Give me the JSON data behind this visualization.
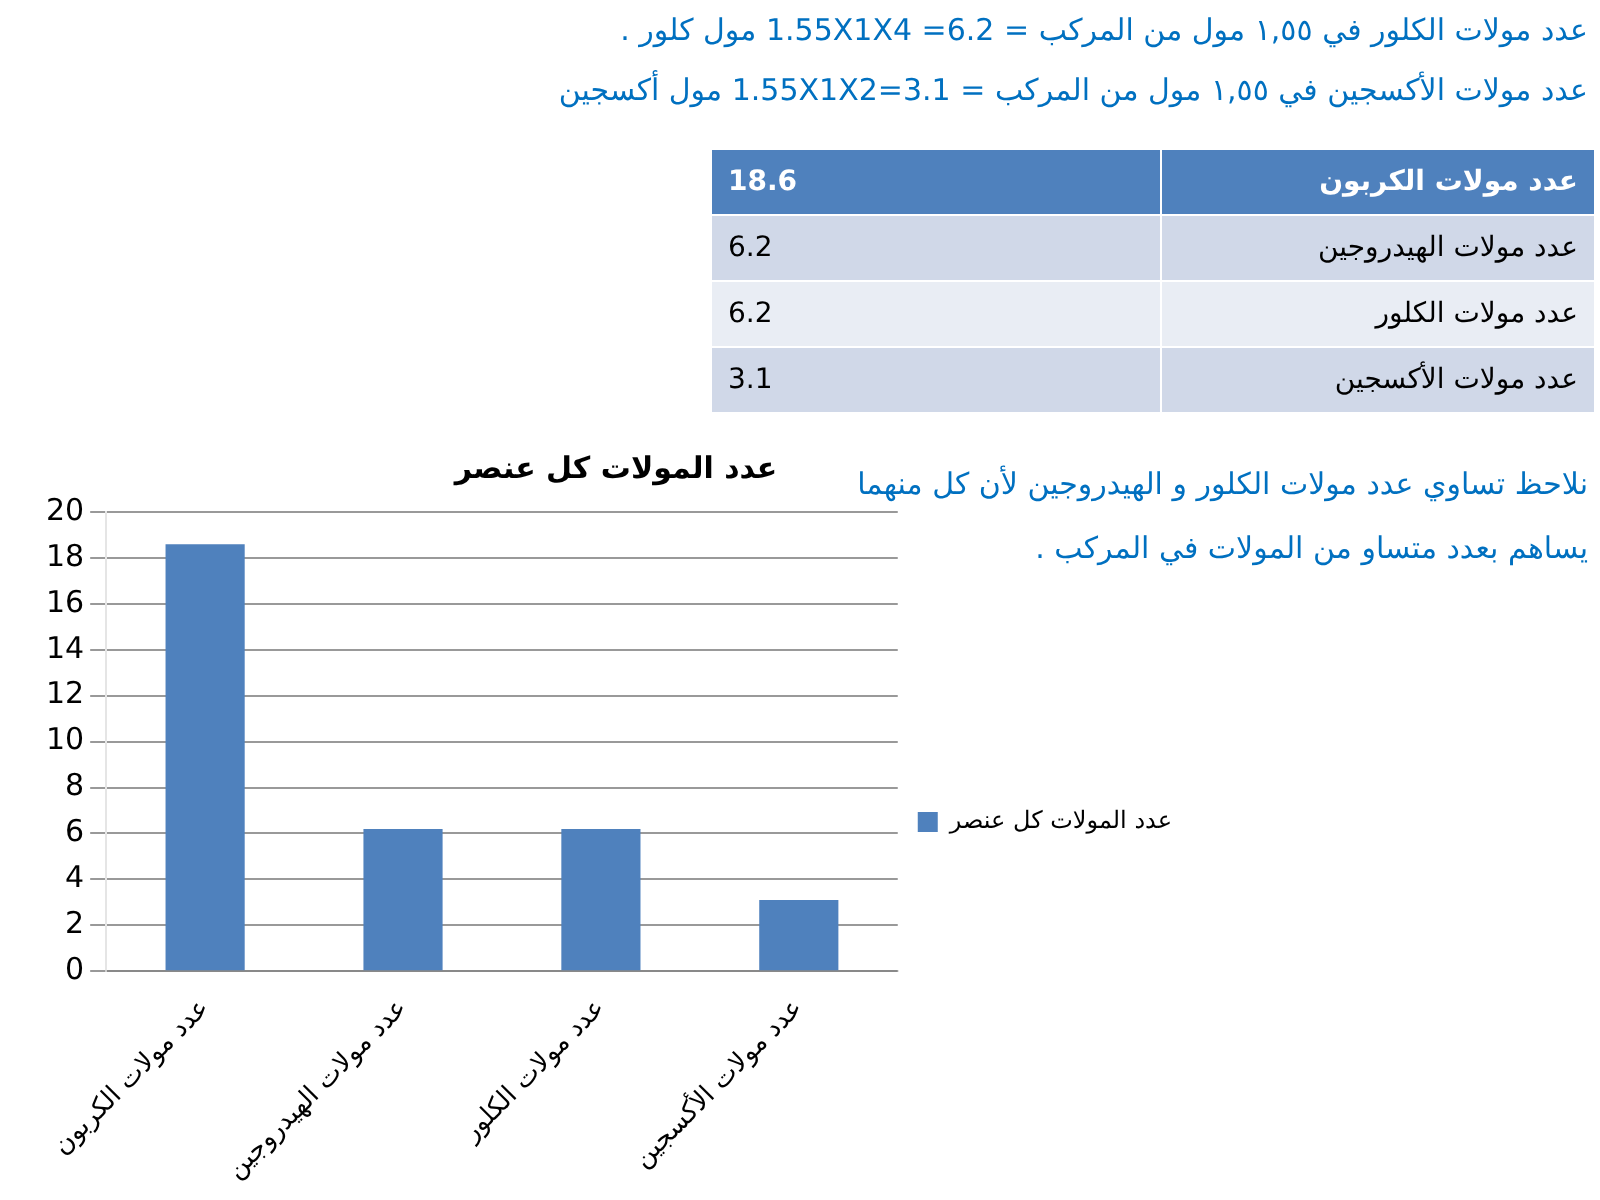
{
  "chart_data": [
    {
      "type": "other",
      "annotations": [
        "عدد مولات الكلور في ١,٥٥ مول من المركب =  6.2= 1.55X1X4 مول كلور .",
        "عدد مولات الأكسجين في ١,٥٥ مول من المركب =  1.55X1X2=3.1 مول أكسجين"
      ],
      "categories": [
        "عدد مولات الكربون",
        "عدد مولات الهيدروجين",
        "عدد مولات الكلور",
        "عدد مولات الأكسجين"
      ],
      "values": [
        18.6,
        6.2,
        6.2,
        3.1
      ],
      "data_labels": true
    },
    {
      "type": "bar",
      "title": "عدد المولات كل عنصر",
      "categories": [
        "عدد مولات الكربون",
        "عدد مولات الهيدروجين",
        "عدد مولات الكلور",
        "عدد مولات الأكسجين"
      ],
      "series": [
        {
          "name": "عدد المولات كل عنصر",
          "color": "#4f81bd",
          "values": [
            18.6,
            6.2,
            6.2,
            3.1
          ]
        }
      ],
      "ylim": [
        0,
        20
      ],
      "yticks": [
        0,
        2,
        4,
        6,
        8,
        10,
        12,
        14,
        16,
        18,
        20
      ],
      "grid": "y",
      "legend": "right",
      "annotations": [
        "نلاحظ تساوي عدد مولات الكلور و الهيدروجين لأن كل منهما",
        "يساهم بعدد متساو من المولات في المركب ."
      ]
    }
  ]
}
